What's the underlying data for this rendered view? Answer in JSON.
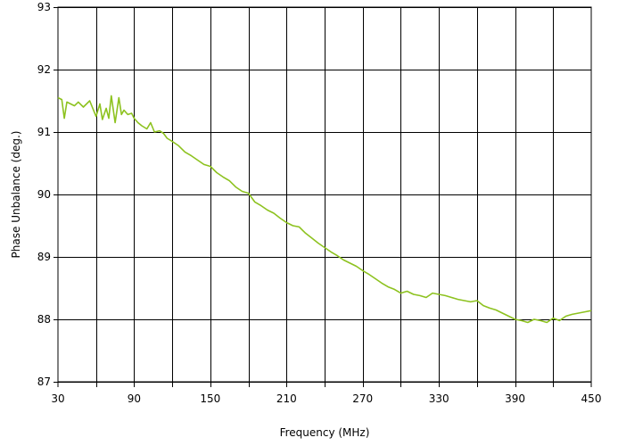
{
  "chart_data": {
    "type": "line",
    "title": "",
    "xlabel": "Frequency (MHz)",
    "ylabel": "Phase Unbalance (deg.)",
    "xlim": [
      30,
      450
    ],
    "ylim": [
      87,
      93
    ],
    "x_ticks": [
      30,
      90,
      150,
      210,
      270,
      330,
      390,
      450
    ],
    "y_ticks": [
      87,
      88,
      89,
      90,
      91,
      92,
      93
    ],
    "grid": true,
    "vertical_grid_step": 30,
    "line_color": "#8dc21f",
    "series": [
      {
        "x": [
          30,
          33,
          35,
          37,
          40,
          43,
          46,
          50,
          55,
          60,
          63,
          65,
          68,
          70,
          72,
          75,
          78,
          80,
          82,
          85,
          88,
          90,
          93,
          96,
          100,
          103,
          106,
          110,
          113,
          116,
          120,
          125,
          130,
          135,
          140,
          145,
          150,
          155,
          160,
          165,
          170,
          175,
          180,
          185,
          190,
          195,
          200,
          205,
          210,
          215,
          220,
          225,
          230,
          235,
          240,
          245,
          250,
          255,
          260,
          265,
          270,
          275,
          280,
          285,
          290,
          295,
          300,
          305,
          310,
          315,
          320,
          325,
          330,
          335,
          340,
          345,
          350,
          355,
          360,
          365,
          370,
          375,
          380,
          385,
          390,
          395,
          400,
          405,
          410,
          415,
          420,
          425,
          430,
          435,
          440,
          445,
          450
        ],
        "y": [
          91.55,
          91.52,
          91.22,
          91.48,
          91.45,
          91.42,
          91.48,
          91.4,
          91.5,
          91.25,
          91.45,
          91.2,
          91.38,
          91.22,
          91.58,
          91.15,
          91.55,
          91.28,
          91.35,
          91.28,
          91.3,
          91.22,
          91.15,
          91.1,
          91.05,
          91.15,
          91.0,
          91.02,
          90.98,
          90.9,
          90.85,
          90.78,
          90.68,
          90.62,
          90.55,
          90.48,
          90.45,
          90.35,
          90.28,
          90.22,
          90.12,
          90.05,
          90.02,
          89.88,
          89.82,
          89.75,
          89.7,
          89.62,
          89.55,
          89.5,
          89.48,
          89.38,
          89.3,
          89.22,
          89.15,
          89.08,
          89.02,
          88.95,
          88.9,
          88.85,
          88.78,
          88.72,
          88.65,
          88.58,
          88.52,
          88.48,
          88.42,
          88.45,
          88.4,
          88.38,
          88.35,
          88.42,
          88.4,
          88.38,
          88.35,
          88.32,
          88.3,
          88.28,
          88.3,
          88.22,
          88.18,
          88.15,
          88.1,
          88.05,
          88.0,
          87.98,
          87.95,
          88.0,
          87.98,
          87.95,
          88.02,
          87.98,
          88.05,
          88.08,
          88.1,
          88.12,
          88.14
        ]
      }
    ]
  }
}
